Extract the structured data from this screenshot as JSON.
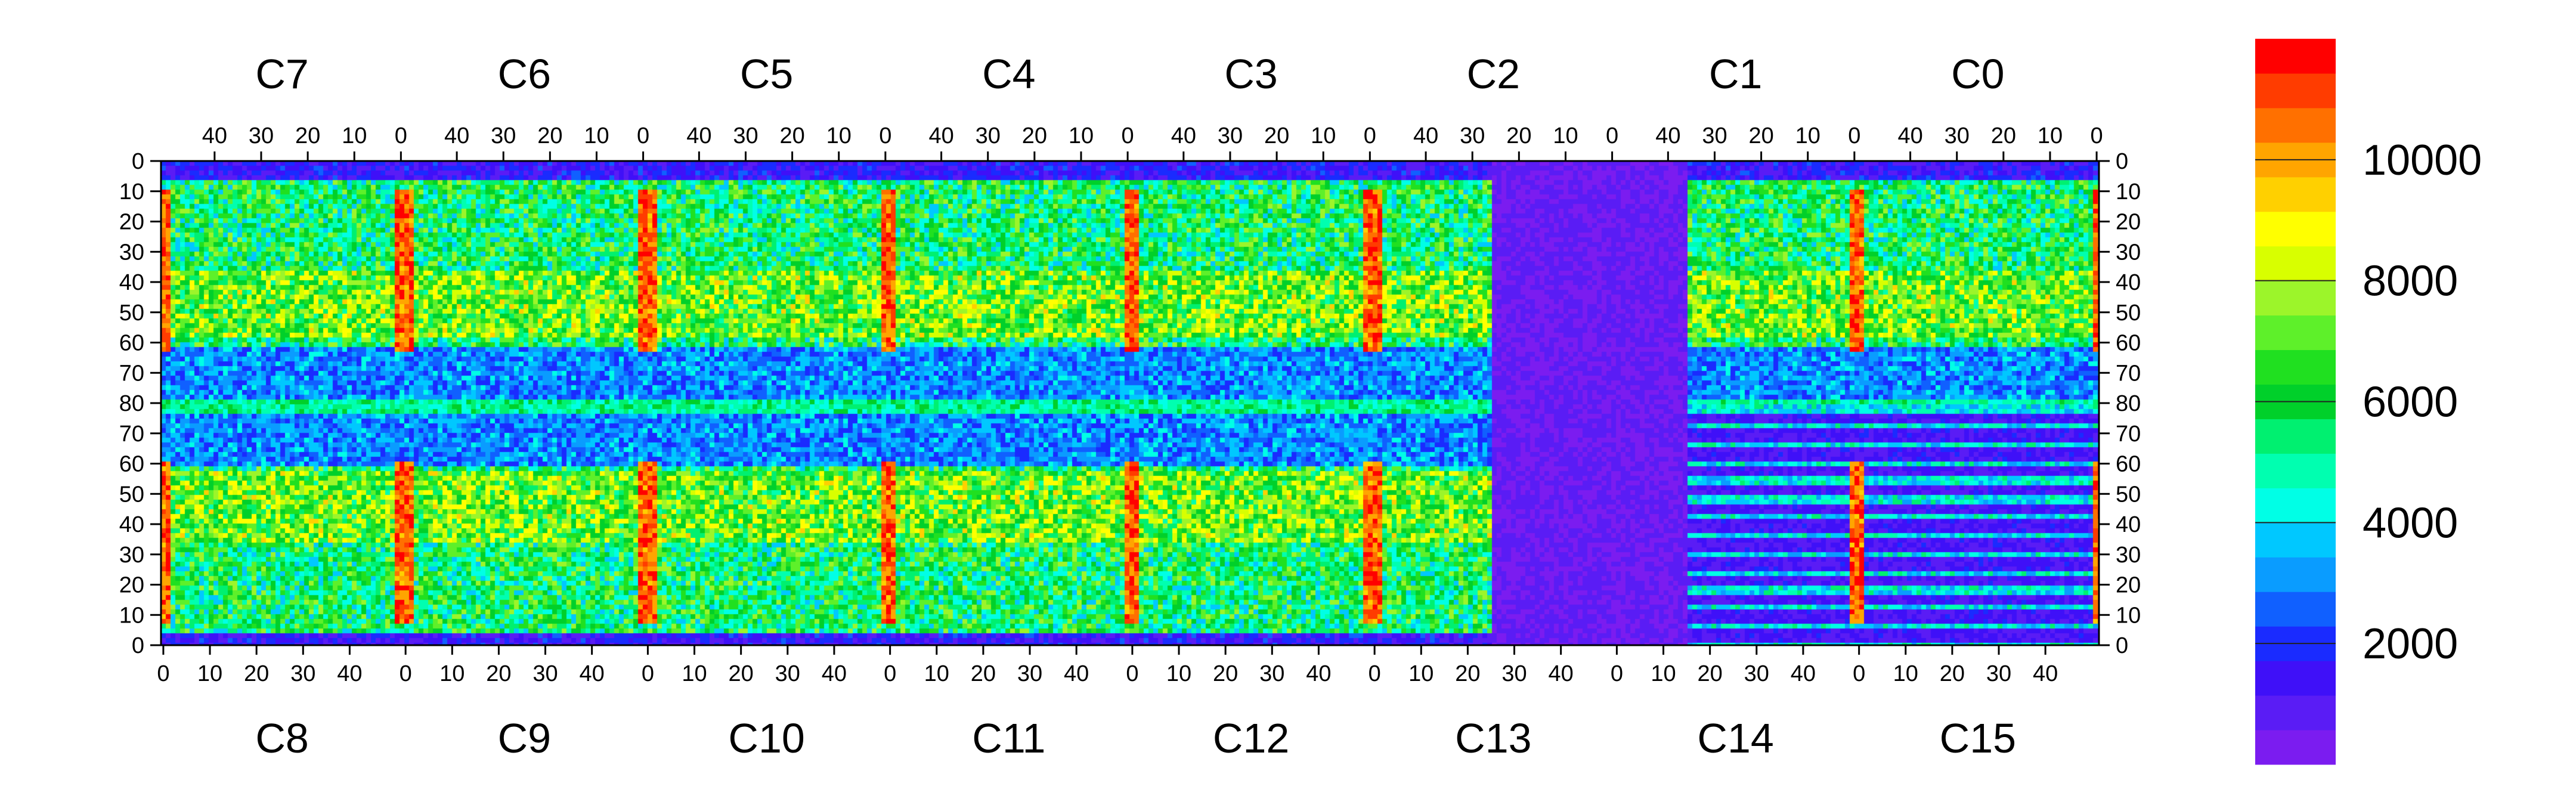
{
  "chart_data": {
    "type": "heatmap",
    "title": "",
    "xlabel": "",
    "ylabel": "",
    "top_chip_labels": [
      "C7",
      "C6",
      "C5",
      "C4",
      "C3",
      "C2",
      "C1",
      "C0"
    ],
    "bottom_chip_labels": [
      "C8",
      "C9",
      "C10",
      "C11",
      "C12",
      "C13",
      "C14",
      "C15"
    ],
    "top_x_ticks": [
      "40",
      "30",
      "20",
      "10",
      "0"
    ],
    "bottom_x_ticks": [
      "0",
      "10",
      "20",
      "30",
      "40"
    ],
    "y_ticks": [
      "0",
      "10",
      "20",
      "30",
      "40",
      "50",
      "60",
      "70",
      "80",
      "70",
      "60",
      "50",
      "40",
      "30",
      "20",
      "10",
      "0"
    ],
    "colorbar": {
      "range": [
        0,
        12000
      ],
      "ticks": [
        "2000",
        "4000",
        "6000",
        "8000",
        "10000"
      ],
      "colors": [
        "#7b1cf0",
        "#5a1cf5",
        "#3f10f8",
        "#1a2bff",
        "#1060ff",
        "#0a9cff",
        "#00c8ff",
        "#00ffe6",
        "#00ffb0",
        "#00f070",
        "#00d02a",
        "#20e020",
        "#5ef02a",
        "#9cf52a",
        "#d8ff00",
        "#ffff00",
        "#ffd000",
        "#ffa500",
        "#ff7000",
        "#ff3c00",
        "#ff0000"
      ]
    },
    "pixel_dims": {
      "columns_per_chip": 52,
      "rows_per_half": 80
    },
    "notes_visible": "blue cold region in chips C2/C13 and C1/C14; red hot columns at chip edges"
  }
}
